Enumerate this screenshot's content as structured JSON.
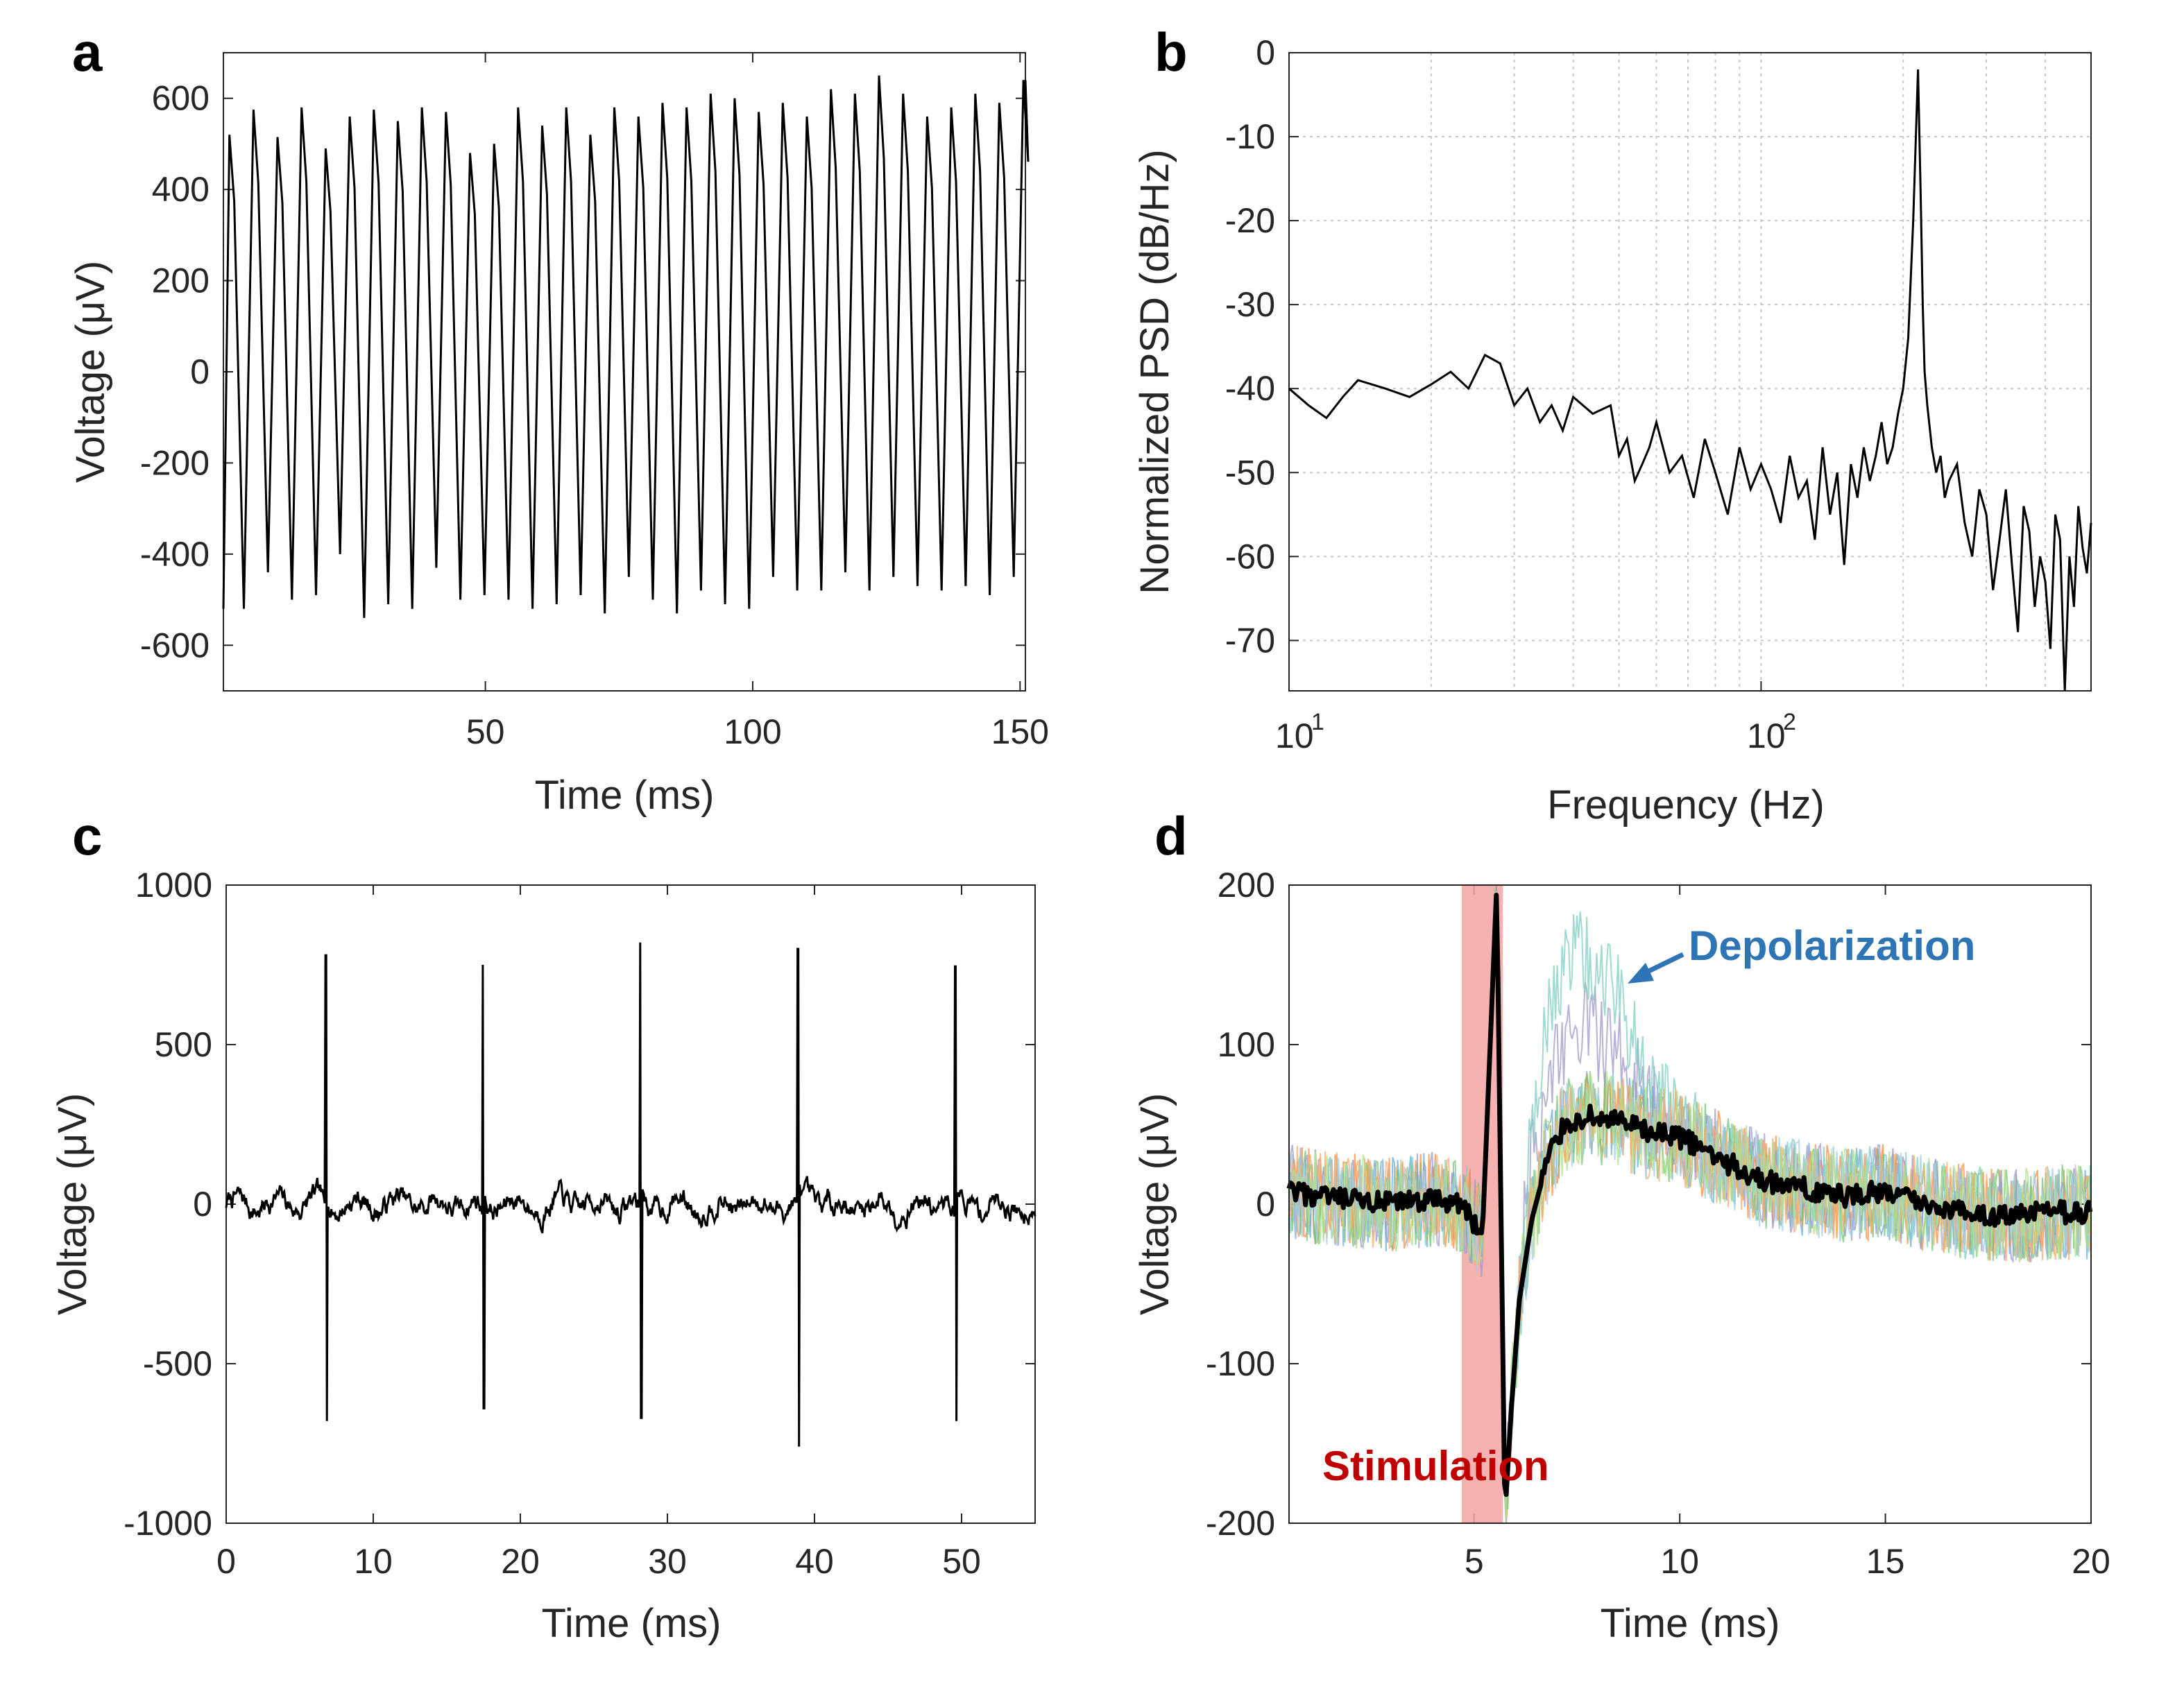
{
  "panels": {
    "a": {
      "letter": "a",
      "xlabel": "Time (ms)",
      "ylabel": "Voltage (μV)",
      "xticks": [
        "50",
        "100",
        "150"
      ],
      "yticks": [
        "600",
        "400",
        "200",
        "0",
        "-200",
        "-400",
        "-600"
      ]
    },
    "b": {
      "letter": "b",
      "xlabel": "Frequency (Hz)",
      "ylabel": "Normalized PSD (dB/Hz)",
      "xtick_base": "10",
      "xtick_exp1": "1",
      "xtick_exp2": "2",
      "yticks": [
        "0",
        "-10",
        "-20",
        "-30",
        "-40",
        "-50",
        "-60",
        "-70"
      ]
    },
    "c": {
      "letter": "c",
      "xlabel": "Time (ms)",
      "ylabel": "Voltage (μV)",
      "xticks": [
        "0",
        "10",
        "20",
        "30",
        "40",
        "50"
      ],
      "yticks": [
        "1000",
        "500",
        "0",
        "-500",
        "-1000"
      ]
    },
    "d": {
      "letter": "d",
      "xlabel": "Time (ms)",
      "ylabel": "Voltage (μV)",
      "xticks": [
        "5",
        "10",
        "15",
        "20"
      ],
      "yticks": [
        "200",
        "100",
        "0",
        "-100",
        "-200"
      ],
      "annotation_depolarization": "Depolarization",
      "annotation_stimulation": "Stimulation"
    }
  },
  "colors": {
    "line": "#000000",
    "stimulation_band": "#f4a3a3",
    "depolarization_text": "#2e75b6",
    "stimulation_text": "#c00000",
    "trial_colors": [
      "#6baed6",
      "#fd8d3c",
      "#74c476",
      "#9e9ac8",
      "#80cdc1",
      "#fdae6b",
      "#a6cee3",
      "#b2df8a"
    ]
  },
  "chart_data": [
    {
      "id": "a",
      "type": "line",
      "title": "",
      "xlabel": "Time (ms)",
      "ylabel": "Voltage (μV)",
      "xlim": [
        1,
        151
      ],
      "ylim": [
        -700,
        700
      ],
      "description": "Periodic stimulation waveform, ~33 cycles (period ~4.5 ms)",
      "period_ms": 4.5,
      "peaks": [
        520,
        575,
        515,
        580,
        490,
        560,
        575,
        550,
        580,
        570,
        480,
        500,
        580,
        540,
        580,
        520,
        580,
        560,
        590,
        580,
        610,
        600,
        570,
        590,
        560,
        620,
        610,
        650,
        610,
        560,
        580,
        610,
        590,
        640
      ],
      "troughs": [
        -520,
        -440,
        -500,
        -490,
        -400,
        -540,
        -510,
        -520,
        -430,
        -500,
        -490,
        -500,
        -520,
        -510,
        -490,
        -530,
        -450,
        -500,
        -530,
        -480,
        -510,
        -520,
        -450,
        -480,
        -480,
        -440,
        -480,
        -450,
        -470,
        -480,
        -470,
        -490,
        -450,
        -400
      ]
    },
    {
      "id": "b",
      "type": "line",
      "title": "",
      "xlabel": "Frequency (Hz)",
      "ylabel": "Normalized PSD (dB/Hz)",
      "xscale": "log",
      "xlim": [
        10,
        500
      ],
      "ylim": [
        -76,
        0
      ],
      "x": [
        10,
        11,
        12,
        13,
        14,
        16,
        18,
        20,
        22,
        24,
        26,
        28,
        30,
        32,
        34,
        36,
        38,
        40,
        44,
        48,
        50,
        52,
        54,
        56,
        58,
        60,
        64,
        68,
        72,
        76,
        80,
        85,
        90,
        95,
        100,
        105,
        110,
        115,
        120,
        125,
        130,
        135,
        140,
        145,
        150,
        155,
        160,
        165,
        170,
        175,
        180,
        185,
        190,
        195,
        200,
        205,
        210,
        215,
        218,
        220,
        222,
        225,
        230,
        235,
        240,
        245,
        250,
        260,
        270,
        280,
        290,
        300,
        310,
        320,
        330,
        340,
        350,
        360,
        370,
        380,
        390,
        400,
        410,
        420,
        430,
        440,
        450,
        460,
        470,
        480,
        490,
        500
      ],
      "y": [
        -40,
        -42,
        -43.5,
        -41,
        -39,
        -40,
        -41,
        -39.5,
        -38,
        -40,
        -36,
        -37,
        -42,
        -40,
        -44,
        -42,
        -45,
        -41,
        -43,
        -42,
        -48,
        -46,
        -51,
        -49,
        -47,
        -44,
        -50,
        -48,
        -53,
        -46,
        -50,
        -55,
        -47,
        -52,
        -49,
        -52,
        -56,
        -48,
        -53,
        -51,
        -58,
        -47,
        -55,
        -50,
        -61,
        -49,
        -53,
        -47,
        -51,
        -48,
        -44,
        -49,
        -47,
        -43,
        -40,
        -34,
        -20,
        -2,
        -18,
        -30,
        -38,
        -42,
        -47,
        -50,
        -48,
        -53,
        -51,
        -49,
        -56,
        -60,
        -52,
        -55,
        -64,
        -58,
        -52,
        -61,
        -69,
        -54,
        -57,
        -66,
        -60,
        -63,
        -71,
        -55,
        -58,
        -76,
        -60,
        -66,
        -54,
        -59,
        -62,
        -56
      ]
    },
    {
      "id": "c",
      "type": "line",
      "title": "",
      "xlabel": "Time (ms)",
      "ylabel": "Voltage (μV)",
      "xlim": [
        0,
        55
      ],
      "ylim": [
        -1000,
        1000
      ],
      "description": "Single-cell recording with baseline noise (~±50 μV) and five stimulation artifacts / spikes",
      "spikes": [
        {
          "t": 6.8,
          "max": 780,
          "min": -680
        },
        {
          "t": 17.5,
          "max": 750,
          "min": -640
        },
        {
          "t": 28.2,
          "max": 820,
          "min": -670
        },
        {
          "t": 38.9,
          "max": 800,
          "min": -760
        },
        {
          "t": 49.6,
          "max": 745,
          "min": -680
        }
      ],
      "baseline_noise_uV": 50
    },
    {
      "id": "d",
      "type": "line",
      "title": "",
      "xlabel": "Time (ms)",
      "ylabel": "Voltage (μV)",
      "xlim": [
        0.5,
        20
      ],
      "ylim": [
        -200,
        200
      ],
      "stimulation_window_ms": [
        4.7,
        5.7
      ],
      "trial_count": 8,
      "mean_trace": {
        "x": [
          0.5,
          1,
          2,
          3,
          4,
          4.7,
          5.2,
          5.55,
          5.75,
          5.9,
          6.1,
          6.4,
          6.8,
          7.2,
          7.8,
          8.5,
          9.2,
          10,
          11,
          12,
          13,
          14,
          15,
          16,
          17,
          18,
          19,
          20
        ],
        "y": [
          8,
          5,
          2,
          0,
          3,
          0,
          -20,
          200,
          -195,
          -130,
          -60,
          -10,
          30,
          50,
          55,
          52,
          45,
          42,
          28,
          15,
          10,
          5,
          8,
          0,
          -5,
          -8,
          -5,
          -5
        ]
      },
      "peak_trial_depolarization_uV": 180
    }
  ]
}
